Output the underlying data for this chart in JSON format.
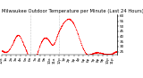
{
  "title": "Milwaukee Outdoor Temperature per Minute (Last 24 Hours)",
  "background_color": "#ffffff",
  "line_color": "#ff0000",
  "grid_color": "#888888",
  "ylim": [
    22,
    62
  ],
  "y_ticks": [
    25,
    30,
    35,
    40,
    45,
    50,
    55,
    60
  ],
  "num_points": 1440,
  "title_fontsize": 3.8,
  "tick_fontsize": 3.0,
  "figsize": [
    1.6,
    0.87
  ],
  "dpi": 100
}
